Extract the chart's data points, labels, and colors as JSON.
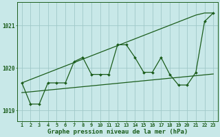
{
  "x": [
    1,
    2,
    3,
    4,
    5,
    6,
    7,
    8,
    9,
    10,
    11,
    12,
    13,
    14,
    15,
    16,
    17,
    18,
    19,
    20,
    21,
    22,
    23
  ],
  "line_main": [
    1019.65,
    1019.15,
    1019.15,
    1019.65,
    1019.65,
    1019.65,
    1020.15,
    1020.25,
    1019.85,
    1019.85,
    1019.85,
    1020.55,
    1020.55,
    1020.25,
    1019.9,
    1019.9,
    1020.25,
    1019.85,
    1019.6,
    1019.6,
    1019.9,
    1021.1,
    1021.3
  ],
  "line_diagonal": [
    1019.65,
    1019.73,
    1019.81,
    1019.89,
    1019.97,
    1020.05,
    1020.13,
    1020.21,
    1020.29,
    1020.37,
    1020.45,
    1020.53,
    1020.61,
    1020.69,
    1020.77,
    1020.85,
    1020.93,
    1021.01,
    1021.09,
    1021.17,
    1021.25,
    1021.3,
    1021.3
  ],
  "line_flat": [
    1019.42,
    1019.44,
    1019.46,
    1019.48,
    1019.5,
    1019.52,
    1019.54,
    1019.56,
    1019.58,
    1019.6,
    1019.62,
    1019.64,
    1019.66,
    1019.68,
    1019.7,
    1019.72,
    1019.74,
    1019.76,
    1019.78,
    1019.8,
    1019.82,
    1019.84,
    1019.86
  ],
  "bg_color": "#c8e8e8",
  "grid_color": "#a0c8c8",
  "line_color": "#1a5c1a",
  "ylim_min": 1018.75,
  "ylim_max": 1021.55,
  "xlim_min": 0.5,
  "xlim_max": 23.5,
  "yticks": [
    1019,
    1020,
    1021
  ],
  "xlabel": "Graphe pression niveau de la mer (hPa)",
  "tick_fontsize": 5.5,
  "xlabel_fontsize": 6.5
}
